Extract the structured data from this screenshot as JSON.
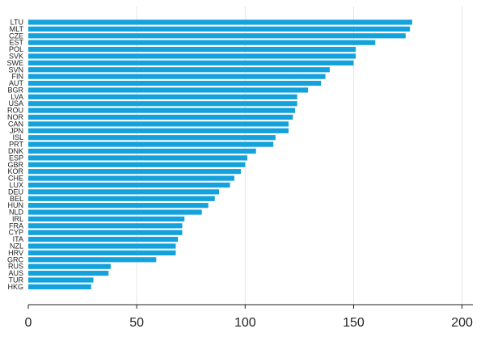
{
  "chart_data": {
    "type": "bar",
    "orientation": "horizontal",
    "categories": [
      "LTU",
      "MLT",
      "CZE",
      "EST",
      "POL",
      "SVK",
      "SWE",
      "SVN",
      "FIN",
      "AUT",
      "BGR",
      "LVA",
      "USA",
      "ROU",
      "NOR",
      "CAN",
      "JPN",
      "ISL",
      "PRT",
      "DNK",
      "ESP",
      "GBR",
      "KOR",
      "CHE",
      "LUX",
      "DEU",
      "BEL",
      "HUN",
      "NLD",
      "IRL",
      "FRA",
      "CYP",
      "ITA",
      "NZL",
      "HRV",
      "GRC",
      "RUS",
      "AUS",
      "TUR",
      "HKG"
    ],
    "values": [
      177,
      176,
      174,
      160,
      151,
      151,
      150,
      139,
      137,
      135,
      129,
      124,
      124,
      123,
      122,
      120,
      120,
      114,
      113,
      105,
      101,
      100,
      98,
      95,
      93,
      88,
      86,
      83,
      80,
      72,
      71,
      71,
      69,
      68,
      68,
      59,
      38,
      37,
      30,
      29
    ],
    "xlim": [
      0,
      205
    ],
    "xticks": [
      0,
      50,
      100,
      150,
      200
    ],
    "grid": true,
    "bar_color": "#14a2dc",
    "title": "",
    "xlabel": "",
    "ylabel": ""
  }
}
